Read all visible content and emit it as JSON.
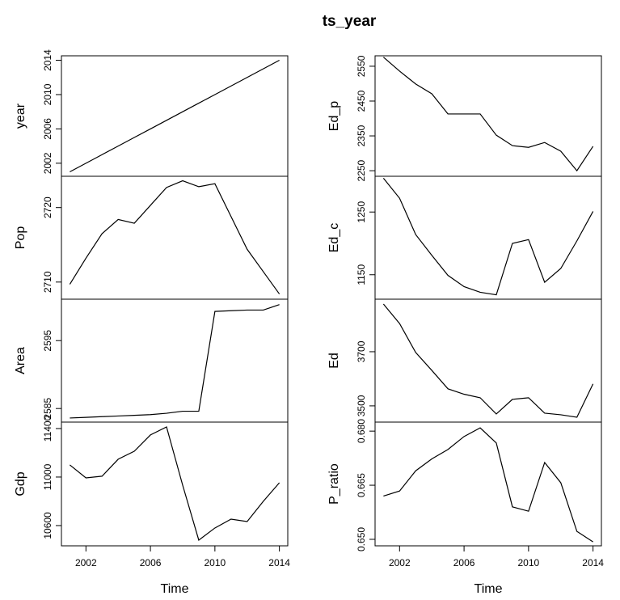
{
  "title": "ts_year",
  "chart_data": [
    {
      "type": "line",
      "ylabel": "year",
      "x": [
        2001,
        2002,
        2003,
        2004,
        2005,
        2006,
        2007,
        2008,
        2009,
        2010,
        2011,
        2012,
        2013,
        2014
      ],
      "values": [
        2001,
        2002,
        2003,
        2004,
        2005,
        2006,
        2007,
        2008,
        2009,
        2010,
        2011,
        2012,
        2013,
        2014
      ],
      "xlim": [
        2000.48,
        2014.52
      ],
      "ylim": [
        2000.48,
        2014.52
      ],
      "yticks": [
        2002,
        2006,
        2010,
        2014
      ],
      "color": "#000000"
    },
    {
      "type": "line",
      "ylabel": "Pop",
      "x": [
        2001,
        2002,
        2003,
        2004,
        2005,
        2006,
        2007,
        2008,
        2009,
        2010,
        2011,
        2012,
        2013,
        2014
      ],
      "values": [
        2709.7,
        2713.2,
        2716.5,
        2718.4,
        2717.9,
        2720.3,
        2722.7,
        2723.6,
        2722.8,
        2723.2,
        2718.8,
        2714.4,
        2711.4,
        2708.4
      ],
      "xlim": [
        2000.48,
        2014.52
      ],
      "ylim": [
        2707.7,
        2724.2
      ],
      "yticks": [
        2710,
        2720
      ],
      "color": "#000000"
    },
    {
      "type": "line",
      "ylabel": "Area",
      "x": [
        2001,
        2002,
        2003,
        2004,
        2005,
        2006,
        2007,
        2008,
        2009,
        2010,
        2011,
        2012,
        2013,
        2014
      ],
      "values": [
        2583.6,
        2583.7,
        2583.8,
        2583.9,
        2584.0,
        2584.1,
        2584.3,
        2584.6,
        2584.6,
        2599.3,
        2599.4,
        2599.5,
        2599.5,
        2600.3
      ],
      "xlim": [
        2000.48,
        2014.52
      ],
      "ylim": [
        2583.0,
        2601.1
      ],
      "yticks": [
        2585,
        2595
      ],
      "color": "#000000"
    },
    {
      "type": "line",
      "ylabel": "Gdp",
      "x": [
        2001,
        2002,
        2003,
        2004,
        2005,
        2006,
        2007,
        2008,
        2009,
        2010,
        2011,
        2012,
        2013,
        2014
      ],
      "values": [
        11100,
        10993,
        11007,
        11147,
        11213,
        11347,
        11413,
        10933,
        10480,
        10580,
        10653,
        10633,
        10800,
        10953
      ],
      "xlim": [
        2000.48,
        2014.52
      ],
      "ylim": [
        10433,
        11453
      ],
      "yticks": [
        10600,
        11000,
        11400
      ],
      "xticks": [
        2002,
        2006,
        2010,
        2014
      ],
      "xlabel": "Time",
      "color": "#000000"
    },
    {
      "type": "line",
      "ylabel": "Ed_p",
      "x": [
        2001,
        2002,
        2003,
        2004,
        2005,
        2006,
        2007,
        2008,
        2009,
        2010,
        2011,
        2012,
        2013,
        2014
      ],
      "values": [
        2576,
        2536,
        2499,
        2471,
        2413,
        2413,
        2413,
        2352,
        2322,
        2317,
        2331,
        2306,
        2250,
        2320
      ],
      "xlim": [
        2000.48,
        2014.52
      ],
      "ylim": [
        2234,
        2580
      ],
      "yticks": [
        2250,
        2350,
        2450,
        2550
      ],
      "color": "#000000"
    },
    {
      "type": "line",
      "ylabel": "Ed_c",
      "x": [
        2001,
        2002,
        2003,
        2004,
        2005,
        2006,
        2007,
        2008,
        2009,
        2010,
        2011,
        2012,
        2013,
        2014
      ],
      "values": [
        1304,
        1272,
        1214,
        1181,
        1149,
        1131,
        1122,
        1118,
        1200,
        1206,
        1138,
        1160,
        1204,
        1251
      ],
      "xlim": [
        2000.48,
        2014.52
      ],
      "ylim": [
        1111,
        1307
      ],
      "yticks": [
        1150,
        1250
      ],
      "color": "#000000"
    },
    {
      "type": "line",
      "ylabel": "Ed",
      "x": [
        2001,
        2002,
        2003,
        2004,
        2005,
        2006,
        2007,
        2008,
        2009,
        2010,
        2011,
        2012,
        2013,
        2014
      ],
      "values": [
        3876,
        3804,
        3697,
        3631,
        3563,
        3543,
        3530,
        3470,
        3524,
        3530,
        3473,
        3467,
        3458,
        3581
      ],
      "xlim": [
        2000.48,
        2014.52
      ],
      "ylim": [
        3440,
        3894
      ],
      "yticks": [
        3500,
        3700
      ],
      "color": "#000000"
    },
    {
      "type": "line",
      "ylabel": "P_ratio",
      "x": [
        2001,
        2002,
        2003,
        2004,
        2005,
        2006,
        2007,
        2008,
        2009,
        2010,
        2011,
        2012,
        2013,
        2014
      ],
      "values": [
        0.662,
        0.6634,
        0.669,
        0.6723,
        0.6749,
        0.6785,
        0.6809,
        0.6767,
        0.659,
        0.6578,
        0.6713,
        0.6657,
        0.6522,
        0.6493
      ],
      "xlim": [
        2000.48,
        2014.52
      ],
      "ylim": [
        0.6482,
        0.6825
      ],
      "yticks": [
        {
          "value": 0.65,
          "label": "0.650"
        },
        0.665,
        {
          "value": 0.68,
          "label": "0.680"
        }
      ],
      "xticks": [
        2002,
        2006,
        2010,
        2014
      ],
      "xlabel": "Time",
      "color": "#000000"
    }
  ]
}
